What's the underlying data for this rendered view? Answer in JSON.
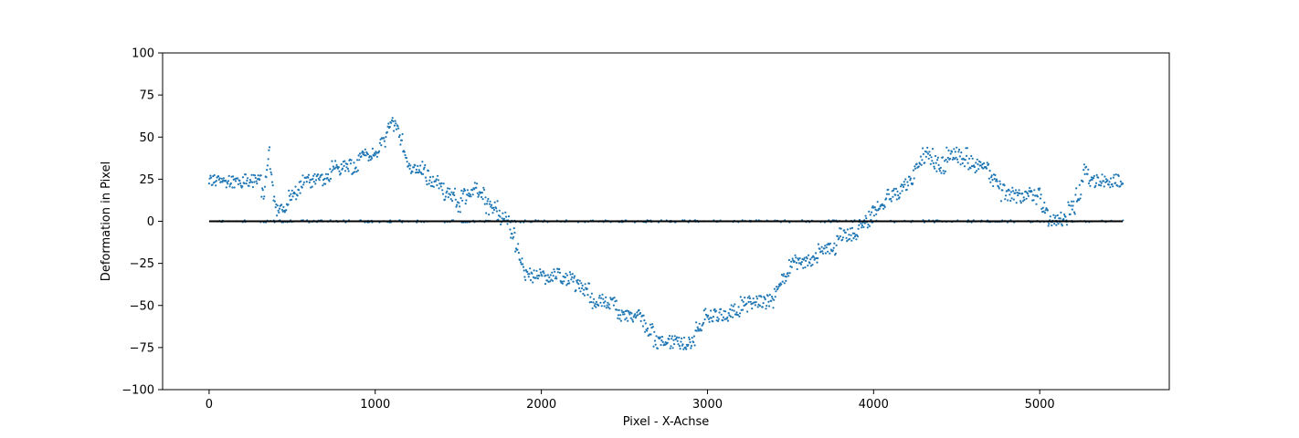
{
  "chart_data": {
    "type": "scatter",
    "title": "",
    "xlabel": "Pixel - X-Achse",
    "ylabel": "Deformation in Pixel",
    "xlim": [
      -280,
      5780
    ],
    "ylim": [
      -100,
      100
    ],
    "xticks": [
      0,
      1000,
      2000,
      3000,
      4000,
      5000
    ],
    "yticks": [
      -100,
      -75,
      -50,
      -25,
      0,
      25,
      50,
      75,
      100
    ],
    "grid": false,
    "legend": "none",
    "colors": {
      "points": "#1f77b4",
      "zero_line": "#000000"
    },
    "series": [
      {
        "type": "scatter",
        "x_range": [
          0,
          5500
        ],
        "x_step": 4,
        "profile": [
          [
            0,
            24
          ],
          [
            100,
            24
          ],
          [
            200,
            24
          ],
          [
            300,
            24
          ],
          [
            330,
            15
          ],
          [
            360,
            40
          ],
          [
            400,
            6
          ],
          [
            450,
            8
          ],
          [
            500,
            16
          ],
          [
            600,
            24
          ],
          [
            700,
            26
          ],
          [
            800,
            32
          ],
          [
            900,
            36
          ],
          [
            1000,
            40
          ],
          [
            1060,
            50
          ],
          [
            1100,
            58
          ],
          [
            1130,
            56
          ],
          [
            1200,
            33
          ],
          [
            1300,
            28
          ],
          [
            1400,
            20
          ],
          [
            1500,
            10
          ],
          [
            1600,
            20
          ],
          [
            1700,
            8
          ],
          [
            1800,
            0
          ],
          [
            1900,
            -30
          ],
          [
            2000,
            -35
          ],
          [
            2100,
            -32
          ],
          [
            2200,
            -36
          ],
          [
            2300,
            -45
          ],
          [
            2400,
            -48
          ],
          [
            2500,
            -55
          ],
          [
            2600,
            -57
          ],
          [
            2700,
            -72
          ],
          [
            2800,
            -72
          ],
          [
            2900,
            -72
          ],
          [
            3000,
            -57
          ],
          [
            3100,
            -55
          ],
          [
            3200,
            -52
          ],
          [
            3300,
            -48
          ],
          [
            3400,
            -45
          ],
          [
            3500,
            -26
          ],
          [
            3600,
            -24
          ],
          [
            3700,
            -18
          ],
          [
            3800,
            -10
          ],
          [
            3900,
            -5
          ],
          [
            4000,
            5
          ],
          [
            4100,
            15
          ],
          [
            4200,
            22
          ],
          [
            4300,
            38
          ],
          [
            4400,
            35
          ],
          [
            4500,
            38
          ],
          [
            4600,
            35
          ],
          [
            4700,
            28
          ],
          [
            4800,
            16
          ],
          [
            4900,
            14
          ],
          [
            5000,
            14
          ],
          [
            5050,
            2
          ],
          [
            5150,
            1
          ],
          [
            5200,
            8
          ],
          [
            5250,
            20
          ],
          [
            5280,
            35
          ],
          [
            5300,
            24
          ],
          [
            5400,
            24
          ],
          [
            5500,
            24
          ]
        ],
        "scatter_amplitude": 4
      },
      {
        "type": "line",
        "x": [
          0,
          5500
        ],
        "y": [
          0,
          0
        ]
      }
    ]
  }
}
